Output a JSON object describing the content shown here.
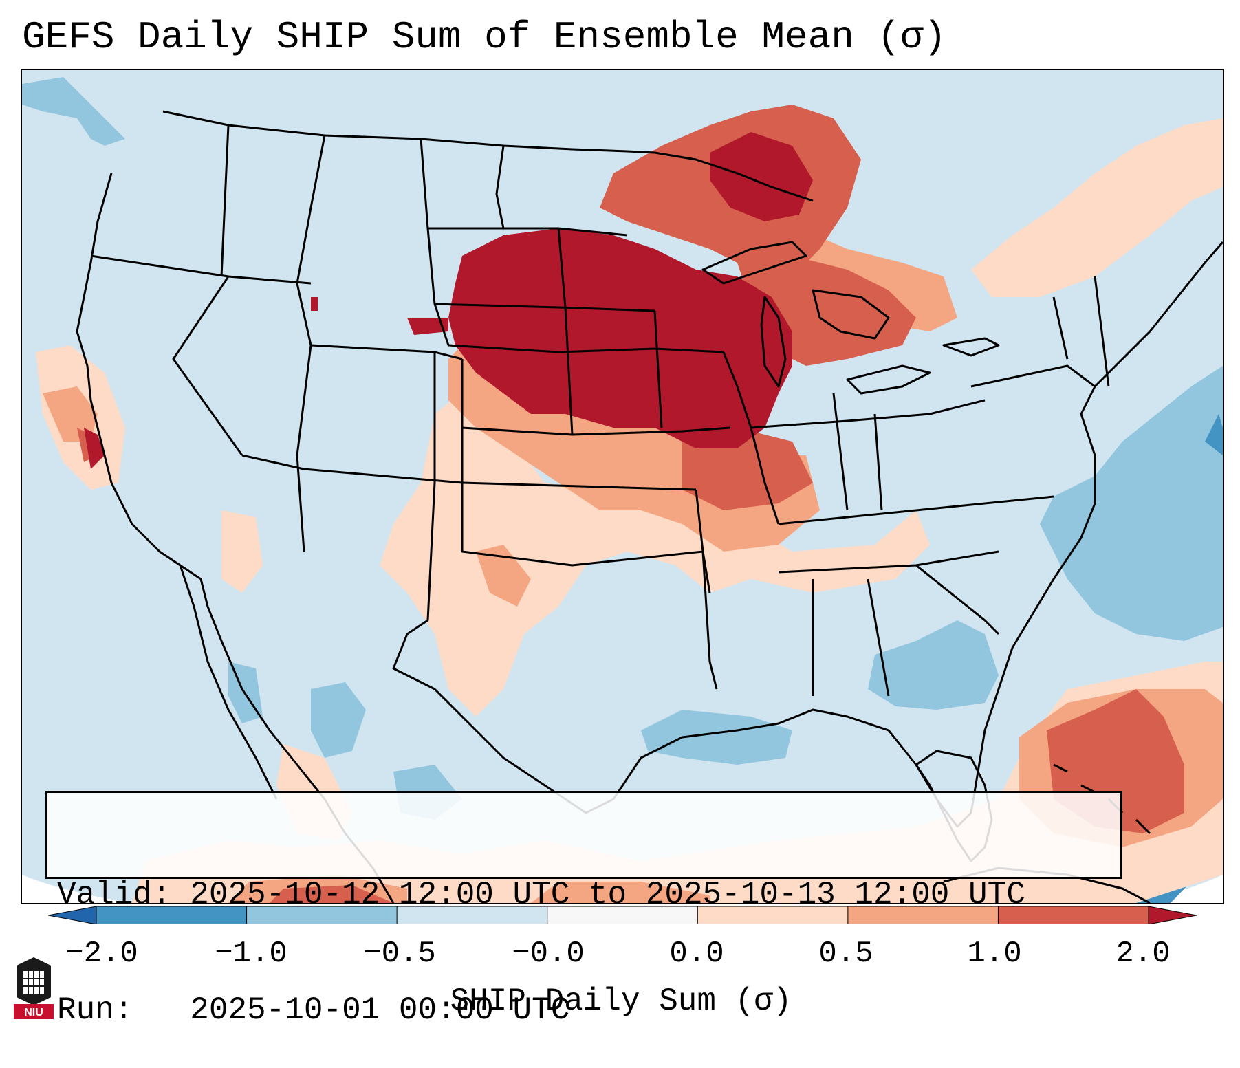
{
  "title": "GEFS Daily SHIP Sum of Ensemble Mean (σ)",
  "info": {
    "valid_line": "Valid: 2025-10-12 12:00 UTC to 2025-10-13 12:00 UTC",
    "run_line": "Run:   2025-10-01 00:00 UTC"
  },
  "colorbar": {
    "label": "SHIP Daily Sum (σ)",
    "ticks": [
      "−2.0",
      "−1.0",
      "−0.5",
      "−0.0",
      "0.0",
      "0.5",
      "1.0",
      "2.0"
    ],
    "bins": [
      {
        "range": "< -2.0",
        "color": "#2166ac"
      },
      {
        "range": "-2.0 to -1.0",
        "color": "#4393c3"
      },
      {
        "range": "-1.0 to -0.5",
        "color": "#92c5de"
      },
      {
        "range": "-0.5 to -0.0",
        "color": "#d1e5f0"
      },
      {
        "range": "-0.0 to 0.0",
        "color": "#f7f7f7"
      },
      {
        "range": "0.0 to 0.5",
        "color": "#fddbc7"
      },
      {
        "range": "0.5 to 1.0",
        "color": "#f4a582"
      },
      {
        "range": "1.0 to 2.0",
        "color": "#d6604d"
      },
      {
        "range": "> 2.0",
        "color": "#b2182b"
      }
    ]
  },
  "regions": [
    {
      "area": "Upper Midwest / Northern Plains (SD, NE, MN, IA, WI)",
      "bin": "> 2.0"
    },
    {
      "area": "Ontario / Great Lakes",
      "bin": "1.0 to 2.0"
    },
    {
      "area": "Kansas / Missouri / Illinois",
      "bin": "0.5 to 1.0"
    },
    {
      "area": "Caribbean / Bahamas",
      "bin": "1.0 to 2.0"
    },
    {
      "area": "Western Atlantic offshore",
      "bin": "-1.0 to -0.5"
    },
    {
      "area": "Georgia / Carolinas",
      "bin": "-1.0 to -0.5"
    },
    {
      "area": "Northern California coast",
      "bin": "0.5 to 1.0"
    }
  ],
  "logo_text": "NIU",
  "colors": {
    "land_base": "#d1e5f0",
    "border": "#000000"
  }
}
